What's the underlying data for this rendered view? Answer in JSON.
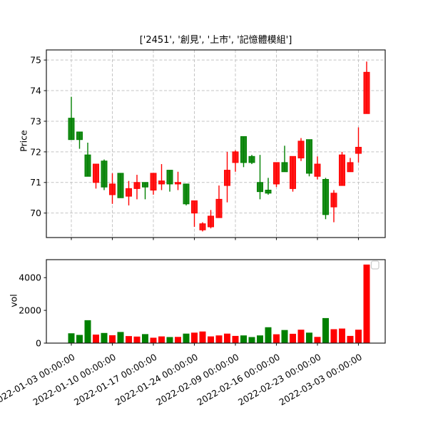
{
  "title": "['2451', '創見', '上市', '記憶體模組']",
  "colors": {
    "up": "#ff0000",
    "down": "#008000",
    "grid": "#c4c4c4",
    "axis": "#1a1a1a",
    "tick_text": "#000000",
    "legend_border": "#cccccc",
    "background": "#ffffff"
  },
  "price_axis": {
    "label": "Price",
    "ticks": [
      70,
      71,
      72,
      73,
      74,
      75
    ],
    "ylim": [
      69.2,
      75.33
    ]
  },
  "volume_axis": {
    "label": "vol",
    "ticks": [
      0,
      2000,
      4000
    ],
    "ylim": [
      0,
      5100
    ]
  },
  "x_axis": {
    "tick_labels": [
      "2022-01-03 00:00:00",
      "2022-01-10 00:00:00",
      "2022-01-17 00:00:00",
      "2022-01-24 00:00:00",
      "2022-02-09 00:00:00",
      "2022-02-16 00:00:00",
      "2022-02-23 00:00:00",
      "2022-03-03 00:00:00"
    ],
    "tick_indices": [
      0,
      5,
      10,
      15,
      20,
      25,
      30,
      35
    ]
  },
  "legend": {
    "visible": true,
    "label": ""
  },
  "chart_data": [
    {
      "type": "candlestick",
      "panel": "price",
      "title": "['2451', '創見', '上市', '記憶體模組']",
      "ylabel": "Price",
      "color_convention": "taiwan: red = up (close>=open), green = down",
      "grid": true,
      "x": [
        "2022-01-03",
        "2022-01-04",
        "2022-01-05",
        "2022-01-06",
        "2022-01-07",
        "2022-01-10",
        "2022-01-11",
        "2022-01-12",
        "2022-01-13",
        "2022-01-14",
        "2022-01-17",
        "2022-01-18",
        "2022-01-19",
        "2022-01-20",
        "2022-01-21",
        "2022-01-24",
        "2022-01-25",
        "2022-01-26",
        "2022-02-07",
        "2022-02-08",
        "2022-02-09",
        "2022-02-10",
        "2022-02-11",
        "2022-02-14",
        "2022-02-15",
        "2022-02-16",
        "2022-02-17",
        "2022-02-18",
        "2022-02-21",
        "2022-02-22",
        "2022-02-23",
        "2022-02-24",
        "2022-02-25",
        "2022-03-01",
        "2022-03-02",
        "2022-03-03",
        "2022-03-04"
      ],
      "open": [
        73.1,
        72.65,
        71.9,
        71.0,
        71.7,
        70.6,
        71.3,
        70.55,
        70.8,
        71.0,
        70.75,
        70.95,
        71.4,
        70.95,
        70.95,
        70.0,
        69.45,
        69.55,
        69.85,
        70.9,
        71.65,
        72.5,
        71.85,
        71.0,
        70.75,
        70.95,
        71.65,
        70.8,
        71.8,
        72.4,
        71.2,
        71.1,
        70.2,
        70.9,
        71.35,
        71.95,
        73.25
      ],
      "high": [
        73.8,
        72.65,
        72.3,
        71.6,
        71.75,
        71.3,
        71.3,
        71.05,
        71.25,
        71.0,
        71.3,
        71.6,
        71.4,
        71.35,
        70.95,
        70.4,
        69.7,
        70.1,
        70.9,
        72.0,
        72.05,
        72.5,
        71.9,
        71.9,
        71.15,
        71.65,
        72.2,
        71.85,
        72.45,
        72.4,
        71.85,
        71.15,
        70.75,
        72.0,
        71.8,
        72.8,
        74.95
      ],
      "low": [
        72.4,
        72.1,
        71.2,
        70.8,
        70.75,
        70.3,
        70.5,
        70.25,
        70.45,
        70.45,
        70.6,
        70.75,
        70.7,
        70.75,
        70.25,
        69.55,
        69.4,
        69.5,
        69.85,
        70.35,
        71.35,
        71.5,
        71.6,
        70.45,
        70.6,
        70.85,
        71.35,
        70.7,
        71.7,
        71.2,
        71.1,
        69.8,
        69.7,
        70.9,
        71.35,
        71.65,
        73.25
      ],
      "close": [
        72.4,
        72.4,
        71.2,
        71.6,
        70.85,
        70.95,
        70.5,
        70.8,
        71.0,
        70.85,
        71.3,
        71.05,
        70.95,
        71.0,
        70.3,
        70.4,
        69.65,
        69.9,
        70.45,
        71.4,
        72.0,
        71.65,
        71.65,
        70.7,
        70.65,
        71.65,
        71.35,
        71.85,
        72.35,
        71.3,
        71.6,
        69.95,
        70.65,
        71.9,
        71.65,
        72.15,
        74.6
      ]
    },
    {
      "type": "bar",
      "panel": "volume",
      "ylabel": "vol",
      "grid": false,
      "x": [
        "2022-01-03",
        "2022-01-04",
        "2022-01-05",
        "2022-01-06",
        "2022-01-07",
        "2022-01-10",
        "2022-01-11",
        "2022-01-12",
        "2022-01-13",
        "2022-01-14",
        "2022-01-17",
        "2022-01-18",
        "2022-01-19",
        "2022-01-20",
        "2022-01-21",
        "2022-01-24",
        "2022-01-25",
        "2022-01-26",
        "2022-02-07",
        "2022-02-08",
        "2022-02-09",
        "2022-02-10",
        "2022-02-11",
        "2022-02-14",
        "2022-02-15",
        "2022-02-16",
        "2022-02-17",
        "2022-02-18",
        "2022-02-21",
        "2022-02-22",
        "2022-02-23",
        "2022-02-24",
        "2022-02-25",
        "2022-03-01",
        "2022-03-02",
        "2022-03-03",
        "2022-03-04"
      ],
      "values": [
        600,
        500,
        1400,
        520,
        620,
        480,
        680,
        430,
        400,
        550,
        330,
        410,
        370,
        380,
        580,
        640,
        710,
        410,
        470,
        580,
        440,
        470,
        370,
        470,
        970,
        540,
        800,
        570,
        820,
        640,
        380,
        1530,
        850,
        890,
        440,
        820,
        4800
      ],
      "bar_color_rule": "same direction color as candle of the day"
    }
  ]
}
